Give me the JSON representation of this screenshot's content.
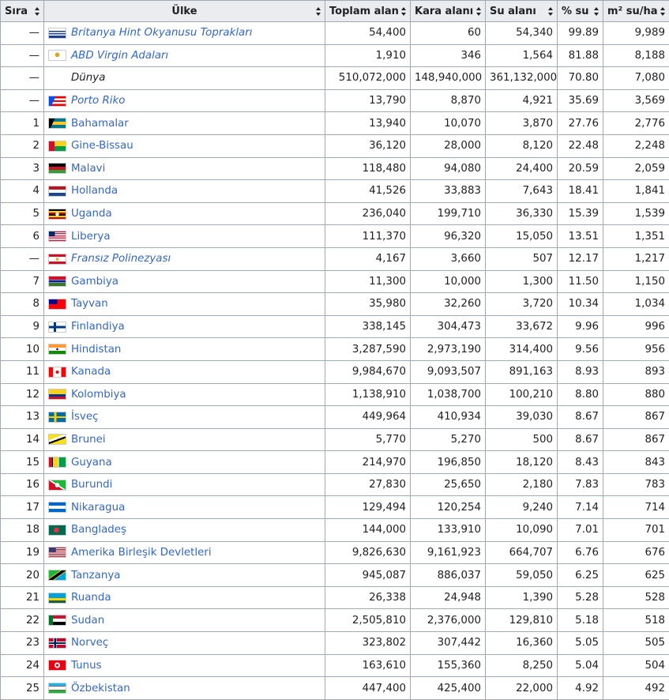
{
  "headers": {
    "rank": "Sıra",
    "country": "Ülke",
    "total_area": "Toplam alan",
    "land_area": "Kara alanı",
    "water_area": "Su alanı",
    "water_pct": "% su",
    "water_per_ha": "m² su/ha"
  },
  "rows": [
    {
      "rank": "—",
      "country": "Britanya Hint Okyanusu Toprakları",
      "italic": true,
      "link": true,
      "flag": "flag-british-indian-ocean-territory-icon",
      "flag_css": "linear-gradient(#ffffff 0 25%, #1a3f94 25% 37%, #ffffff 37% 50%, #1a3f94 50% 62%, #ffffff 62% 75%, #1a3f94 75% 100%)",
      "total": "54,400",
      "land": "60",
      "water": "54,340",
      "pct": "99.89",
      "per_ha": "9,989"
    },
    {
      "rank": "—",
      "country": "ABD Virgin Adaları",
      "italic": true,
      "link": true,
      "flag": "flag-us-virgin-islands-icon",
      "flag_css": "radial-gradient(circle at 50% 45%, #d4a72c 0 22%, transparent 24%), #ffffff",
      "total": "1,910",
      "land": "346",
      "water": "1,564",
      "pct": "81.88",
      "per_ha": "8,188"
    },
    {
      "rank": "—",
      "country": "Dünya",
      "italic": true,
      "link": false,
      "flag": "",
      "flag_css": "",
      "total": "510,072,000",
      "land": "148,940,000",
      "water": "361,132,000",
      "pct": "70.80",
      "per_ha": "7,080"
    },
    {
      "rank": "—",
      "country": "Porto Riko",
      "italic": true,
      "link": true,
      "flag": "flag-puerto-rico-icon",
      "flag_css": "linear-gradient(115deg, #0050f0 0 32%, transparent 32%), repeating-linear-gradient(#ed0000 0 20%, #ffffff 20% 40%)",
      "total": "13,790",
      "land": "8,870",
      "water": "4,921",
      "pct": "35.69",
      "per_ha": "3,569"
    },
    {
      "rank": "1",
      "country": "Bahamalar",
      "italic": false,
      "link": true,
      "flag": "flag-bahamas-icon",
      "flag_css": "linear-gradient(115deg, #000000 0 28%, transparent 28%), linear-gradient(#00778b 0 33%, #ffc72c 33% 67%, #00778b 67% 100%)",
      "total": "13,940",
      "land": "10,070",
      "water": "3,870",
      "pct": "27.76",
      "per_ha": "2,776"
    },
    {
      "rank": "2",
      "country": "Gine-Bissau",
      "italic": false,
      "link": true,
      "flag": "flag-guinea-bissau-icon",
      "flag_css": "linear-gradient(90deg, #ce1126 0 33%, transparent 33%), linear-gradient(#fcd116 0 50%, #009e49 50% 100%)",
      "total": "36,120",
      "land": "28,000",
      "water": "8,120",
      "pct": "22.48",
      "per_ha": "2,248"
    },
    {
      "rank": "3",
      "country": "Malavi",
      "italic": false,
      "link": true,
      "flag": "flag-malawi-icon",
      "flag_css": "linear-gradient(#000000 0 33%, #ce1126 33% 67%, #339e35 67% 100%)",
      "total": "118,480",
      "land": "94,080",
      "water": "24,400",
      "pct": "20.59",
      "per_ha": "2,059"
    },
    {
      "rank": "4",
      "country": "Hollanda",
      "italic": false,
      "link": true,
      "flag": "flag-netherlands-icon",
      "flag_css": "linear-gradient(#ae1c28 0 33%, #ffffff 33% 67%, #21468b 67% 100%)",
      "total": "41,526",
      "land": "33,883",
      "water": "7,643",
      "pct": "18.41",
      "per_ha": "1,841"
    },
    {
      "rank": "5",
      "country": "Uganda",
      "italic": false,
      "link": true,
      "flag": "flag-uganda-icon",
      "flag_css": "radial-gradient(circle at 50% 50%, #ffffff 0 18%, transparent 20%), repeating-linear-gradient(#000000 0 16.6%, #fcdc04 16.6% 33.3%, #d90000 33.3% 50%)",
      "total": "236,040",
      "land": "199,710",
      "water": "36,330",
      "pct": "15.39",
      "per_ha": "1,539"
    },
    {
      "rank": "6",
      "country": "Liberya",
      "italic": false,
      "link": true,
      "flag": "flag-liberia-icon",
      "flag_css": "linear-gradient(90deg, #002868 0 35%, transparent 35%) top left / 100% 50% no-repeat, repeating-linear-gradient(#bf0a30 0 9%, #ffffff 9% 18%)",
      "total": "111,370",
      "land": "96,320",
      "water": "15,050",
      "pct": "13.51",
      "per_ha": "1,351"
    },
    {
      "rank": "—",
      "country": "Fransız Polinezyası",
      "italic": true,
      "link": true,
      "flag": "flag-french-polynesia-icon",
      "flag_css": "radial-gradient(circle at 50% 50%, #f2a900 0 14%, transparent 16%), linear-gradient(#ce1126 0 25%, #ffffff 25% 75%, #ce1126 75% 100%)",
      "total": "4,167",
      "land": "3,660",
      "water": "507",
      "pct": "12.17",
      "per_ha": "1,217"
    },
    {
      "rank": "7",
      "country": "Gambiya",
      "italic": false,
      "link": true,
      "flag": "flag-gambia-icon",
      "flag_css": "linear-gradient(#ce1126 0 33%, #ffffff 33% 38%, #0c1c8c 38% 62%, #ffffff 62% 67%, #3a7728 67% 100%)",
      "total": "11,300",
      "land": "10,000",
      "water": "1,300",
      "pct": "11.50",
      "per_ha": "1,150"
    },
    {
      "rank": "8",
      "country": "Tayvan",
      "italic": false,
      "link": true,
      "flag": "flag-taiwan-icon",
      "flag_css": "linear-gradient(#000095, #000095) top left / 50% 50% no-repeat, #fe0000",
      "total": "35,980",
      "land": "32,260",
      "water": "3,720",
      "pct": "10.34",
      "per_ha": "1,034"
    },
    {
      "rank": "9",
      "country": "Finlandiya",
      "italic": false,
      "link": true,
      "flag": "flag-finland-icon",
      "flag_css": "linear-gradient(90deg, transparent 0 28%, #003580 28% 44%, transparent 44%), linear-gradient(transparent 0 38%, #003580 38% 62%, transparent 62%), #ffffff",
      "total": "338,145",
      "land": "304,473",
      "water": "33,672",
      "pct": "9.96",
      "per_ha": "996"
    },
    {
      "rank": "10",
      "country": "Hindistan",
      "italic": false,
      "link": true,
      "flag": "flag-india-icon",
      "flag_css": "radial-gradient(circle at 50% 50%, #000080 0 10%, transparent 12%), linear-gradient(#ff9933 0 33%, #ffffff 33% 67%, #138808 67% 100%)",
      "total": "3,287,590",
      "land": "2,973,190",
      "water": "314,400",
      "pct": "9.56",
      "per_ha": "956"
    },
    {
      "rank": "11",
      "country": "Kanada",
      "italic": false,
      "link": true,
      "flag": "flag-canada-icon",
      "flag_css": "radial-gradient(circle at 50% 50%, #ff0000 0 16%, transparent 18%), linear-gradient(90deg, #ff0000 0 25%, #ffffff 25% 75%, #ff0000 75% 100%)",
      "total": "9,984,670",
      "land": "9,093,507",
      "water": "891,163",
      "pct": "8.93",
      "per_ha": "893"
    },
    {
      "rank": "12",
      "country": "Kolombiya",
      "italic": false,
      "link": true,
      "flag": "flag-colombia-icon",
      "flag_css": "linear-gradient(#fcd116 0 50%, #003893 50% 75%, #ce1126 75% 100%)",
      "total": "1,138,910",
      "land": "1,038,700",
      "water": "100,210",
      "pct": "8.80",
      "per_ha": "880"
    },
    {
      "rank": "13",
      "country": "İsveç",
      "italic": false,
      "link": true,
      "flag": "flag-sweden-icon",
      "flag_css": "linear-gradient(90deg, transparent 0 30%, #fecc00 30% 45%, transparent 45%), linear-gradient(transparent 0 40%, #fecc00 40% 60%, transparent 60%), #006aa7",
      "total": "449,964",
      "land": "410,934",
      "water": "39,030",
      "pct": "8.67",
      "per_ha": "867"
    },
    {
      "rank": "14",
      "country": "Brunei",
      "italic": false,
      "link": true,
      "flag": "flag-brunei-icon",
      "flag_css": "linear-gradient(160deg, #f7e017 0 35%, #ffffff 35% 50%, #000000 50% 62%, #f7e017 62% 100%)",
      "total": "5,770",
      "land": "5,270",
      "water": "500",
      "pct": "8.67",
      "per_ha": "867"
    },
    {
      "rank": "15",
      "country": "Guyana",
      "italic": false,
      "link": true,
      "flag": "flag-guyana-icon",
      "flag_css": "linear-gradient(90deg, #ce1126 0 18%, #000000 18% 24%, #fcd116 24% 55%, #ffffff 55% 60%, #009e49 60% 100%)",
      "total": "214,970",
      "land": "196,850",
      "water": "18,120",
      "pct": "8.43",
      "per_ha": "843"
    },
    {
      "rank": "16",
      "country": "Burundi",
      "italic": false,
      "link": true,
      "flag": "flag-burundi-icon",
      "flag_css": "radial-gradient(circle at 50% 50%, #ffffff 0 22%, transparent 24%), linear-gradient(33deg, #ce1126 0 46%, #ffffff 46% 54%, #1eb53a 54% 100%)",
      "total": "27,830",
      "land": "25,650",
      "water": "2,180",
      "pct": "7.83",
      "per_ha": "783"
    },
    {
      "rank": "17",
      "country": "Nikaragua",
      "italic": false,
      "link": true,
      "flag": "flag-nicaragua-icon",
      "flag_css": "linear-gradient(#0067c6 0 33%, #ffffff 33% 67%, #0067c6 67% 100%)",
      "total": "129,494",
      "land": "120,254",
      "water": "9,240",
      "pct": "7.14",
      "per_ha": "714"
    },
    {
      "rank": "18",
      "country": "Bangladeş",
      "italic": false,
      "link": true,
      "flag": "flag-bangladesh-icon",
      "flag_css": "radial-gradient(circle at 45% 50%, #f42a41 0 24%, transparent 26%), #006a4e",
      "total": "144,000",
      "land": "133,910",
      "water": "10,090",
      "pct": "7.01",
      "per_ha": "701"
    },
    {
      "rank": "19",
      "country": "Amerika Birleşik Devletleri",
      "italic": false,
      "link": true,
      "flag": "flag-united-states-icon",
      "flag_css": "linear-gradient(#3c3b6e, #3c3b6e) top left / 42% 54% no-repeat, repeating-linear-gradient(#b22234 0 7.7%, #ffffff 7.7% 15.4%)",
      "total": "9,826,630",
      "land": "9,161,923",
      "water": "664,707",
      "pct": "6.76",
      "per_ha": "676"
    },
    {
      "rank": "20",
      "country": "Tanzanya",
      "italic": false,
      "link": true,
      "flag": "flag-tanzania-icon",
      "flag_css": "linear-gradient(145deg, #1eb53a 0 38%, #fcd116 38% 42%, #000000 42% 58%, #fcd116 58% 62%, #00a3dd 62% 100%)",
      "total": "945,087",
      "land": "886,037",
      "water": "59,050",
      "pct": "6.25",
      "per_ha": "625"
    },
    {
      "rank": "21",
      "country": "Ruanda",
      "italic": false,
      "link": true,
      "flag": "flag-rwanda-icon",
      "flag_css": "linear-gradient(#00a1de 0 50%, #fad201 50% 75%, #20603d 75% 100%)",
      "total": "26,338",
      "land": "24,948",
      "water": "1,390",
      "pct": "5.28",
      "per_ha": "528"
    },
    {
      "rank": "22",
      "country": "Sudan",
      "italic": false,
      "link": true,
      "flag": "flag-sudan-icon",
      "flag_css": "linear-gradient(90deg, #007229 0 25%, transparent 25%), linear-gradient(#d21034 0 33%, #ffffff 33% 67%, #000000 67% 100%)",
      "total": "2,505,810",
      "land": "2,376,000",
      "water": "129,810",
      "pct": "5.18",
      "per_ha": "518"
    },
    {
      "rank": "23",
      "country": "Norveç",
      "italic": false,
      "link": true,
      "flag": "flag-norway-icon",
      "flag_css": "linear-gradient(90deg, transparent 0 30%, #00205b 30% 42%, transparent 42%), linear-gradient(transparent 0 42%, #00205b 42% 58%, transparent 58%), linear-gradient(90deg, transparent 0 26%, #ffffff 26% 46%, transparent 46%), linear-gradient(transparent 0 35%, #ffffff 35% 65%, transparent 65%), #ba0c2f",
      "total": "323,802",
      "land": "307,442",
      "water": "16,360",
      "pct": "5.05",
      "per_ha": "505"
    },
    {
      "rank": "24",
      "country": "Tunus",
      "italic": false,
      "link": true,
      "flag": "flag-tunisia-icon",
      "flag_css": "radial-gradient(circle at 50% 50%, #e70013 0 14%, #ffffff 15% 28%, transparent 30%), #e70013",
      "total": "163,610",
      "land": "155,360",
      "water": "8,250",
      "pct": "5.04",
      "per_ha": "504"
    },
    {
      "rank": "25",
      "country": "Özbekistan",
      "italic": false,
      "link": true,
      "flag": "flag-uzbekistan-icon",
      "flag_css": "linear-gradient(#1eb5e8 0 31%, #ce1126 31% 35%, #ffffff 35% 65%, #ce1126 65% 69%, #1eb53a 69% 100%)",
      "total": "447,400",
      "land": "425,400",
      "water": "22,000",
      "pct": "4.92",
      "per_ha": "492"
    }
  ]
}
